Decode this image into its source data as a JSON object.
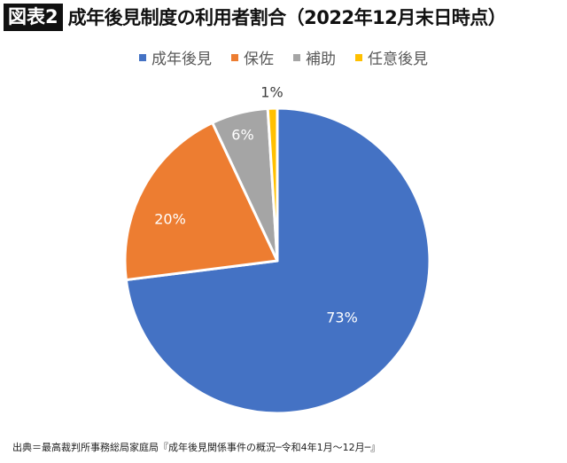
{
  "header": {
    "figure_label": "図表2",
    "title": "成年後見制度の利用者割合（2022年12月末日時点）"
  },
  "legend": [
    {
      "label": "成年後見",
      "color": "#4472C4"
    },
    {
      "label": "保佐",
      "color": "#ED7D31"
    },
    {
      "label": "補助",
      "color": "#A5A5A5"
    },
    {
      "label": "任意後見",
      "color": "#FFC000"
    }
  ],
  "slice_labels": {
    "s0": "73%",
    "s1": "20%",
    "s2": "6%",
    "s3": "1%"
  },
  "source": "出典＝最高裁判所事務総局家庭局『成年後見関係事件の概況─令和4年1月～12月─』",
  "chart_data": {
    "type": "pie",
    "title": "成年後見制度の利用者割合（2022年12月末日時点）",
    "categories": [
      "成年後見",
      "保佐",
      "補助",
      "任意後見"
    ],
    "values": [
      73,
      20,
      6,
      1
    ],
    "unit": "%",
    "colors": [
      "#4472C4",
      "#ED7D31",
      "#A5A5A5",
      "#FFC000"
    ],
    "start_angle": "12 o'clock",
    "direction": "clockwise",
    "legend_position": "top",
    "data_labels": [
      "73%",
      "20%",
      "6%",
      "1%"
    ]
  }
}
